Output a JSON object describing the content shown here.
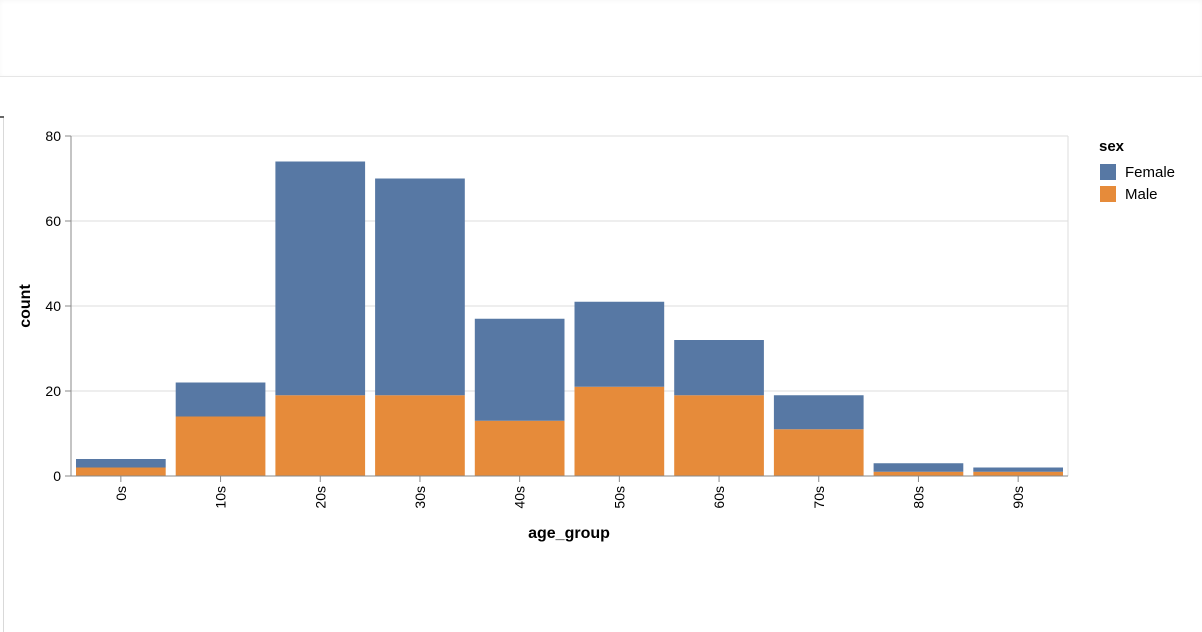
{
  "chart_data": {
    "type": "bar",
    "stacked": true,
    "xlabel": "age_group",
    "ylabel": "count",
    "categories": [
      "0s",
      "10s",
      "20s",
      "30s",
      "40s",
      "50s",
      "60s",
      "70s",
      "80s",
      "90s"
    ],
    "series": [
      {
        "name": "Female",
        "color": "#5778a4",
        "values": [
          2,
          8,
          55,
          51,
          24,
          20,
          13,
          8,
          2,
          1
        ]
      },
      {
        "name": "Male",
        "color": "#e68b3a",
        "values": [
          2,
          14,
          19,
          19,
          13,
          21,
          19,
          11,
          1,
          1
        ]
      }
    ],
    "yticks": [
      0,
      20,
      40,
      60,
      80
    ],
    "ylim": [
      0,
      80
    ],
    "grid": true,
    "legend": {
      "title": "sex",
      "placement": "top-right",
      "items": [
        "Female",
        "Male"
      ]
    }
  }
}
